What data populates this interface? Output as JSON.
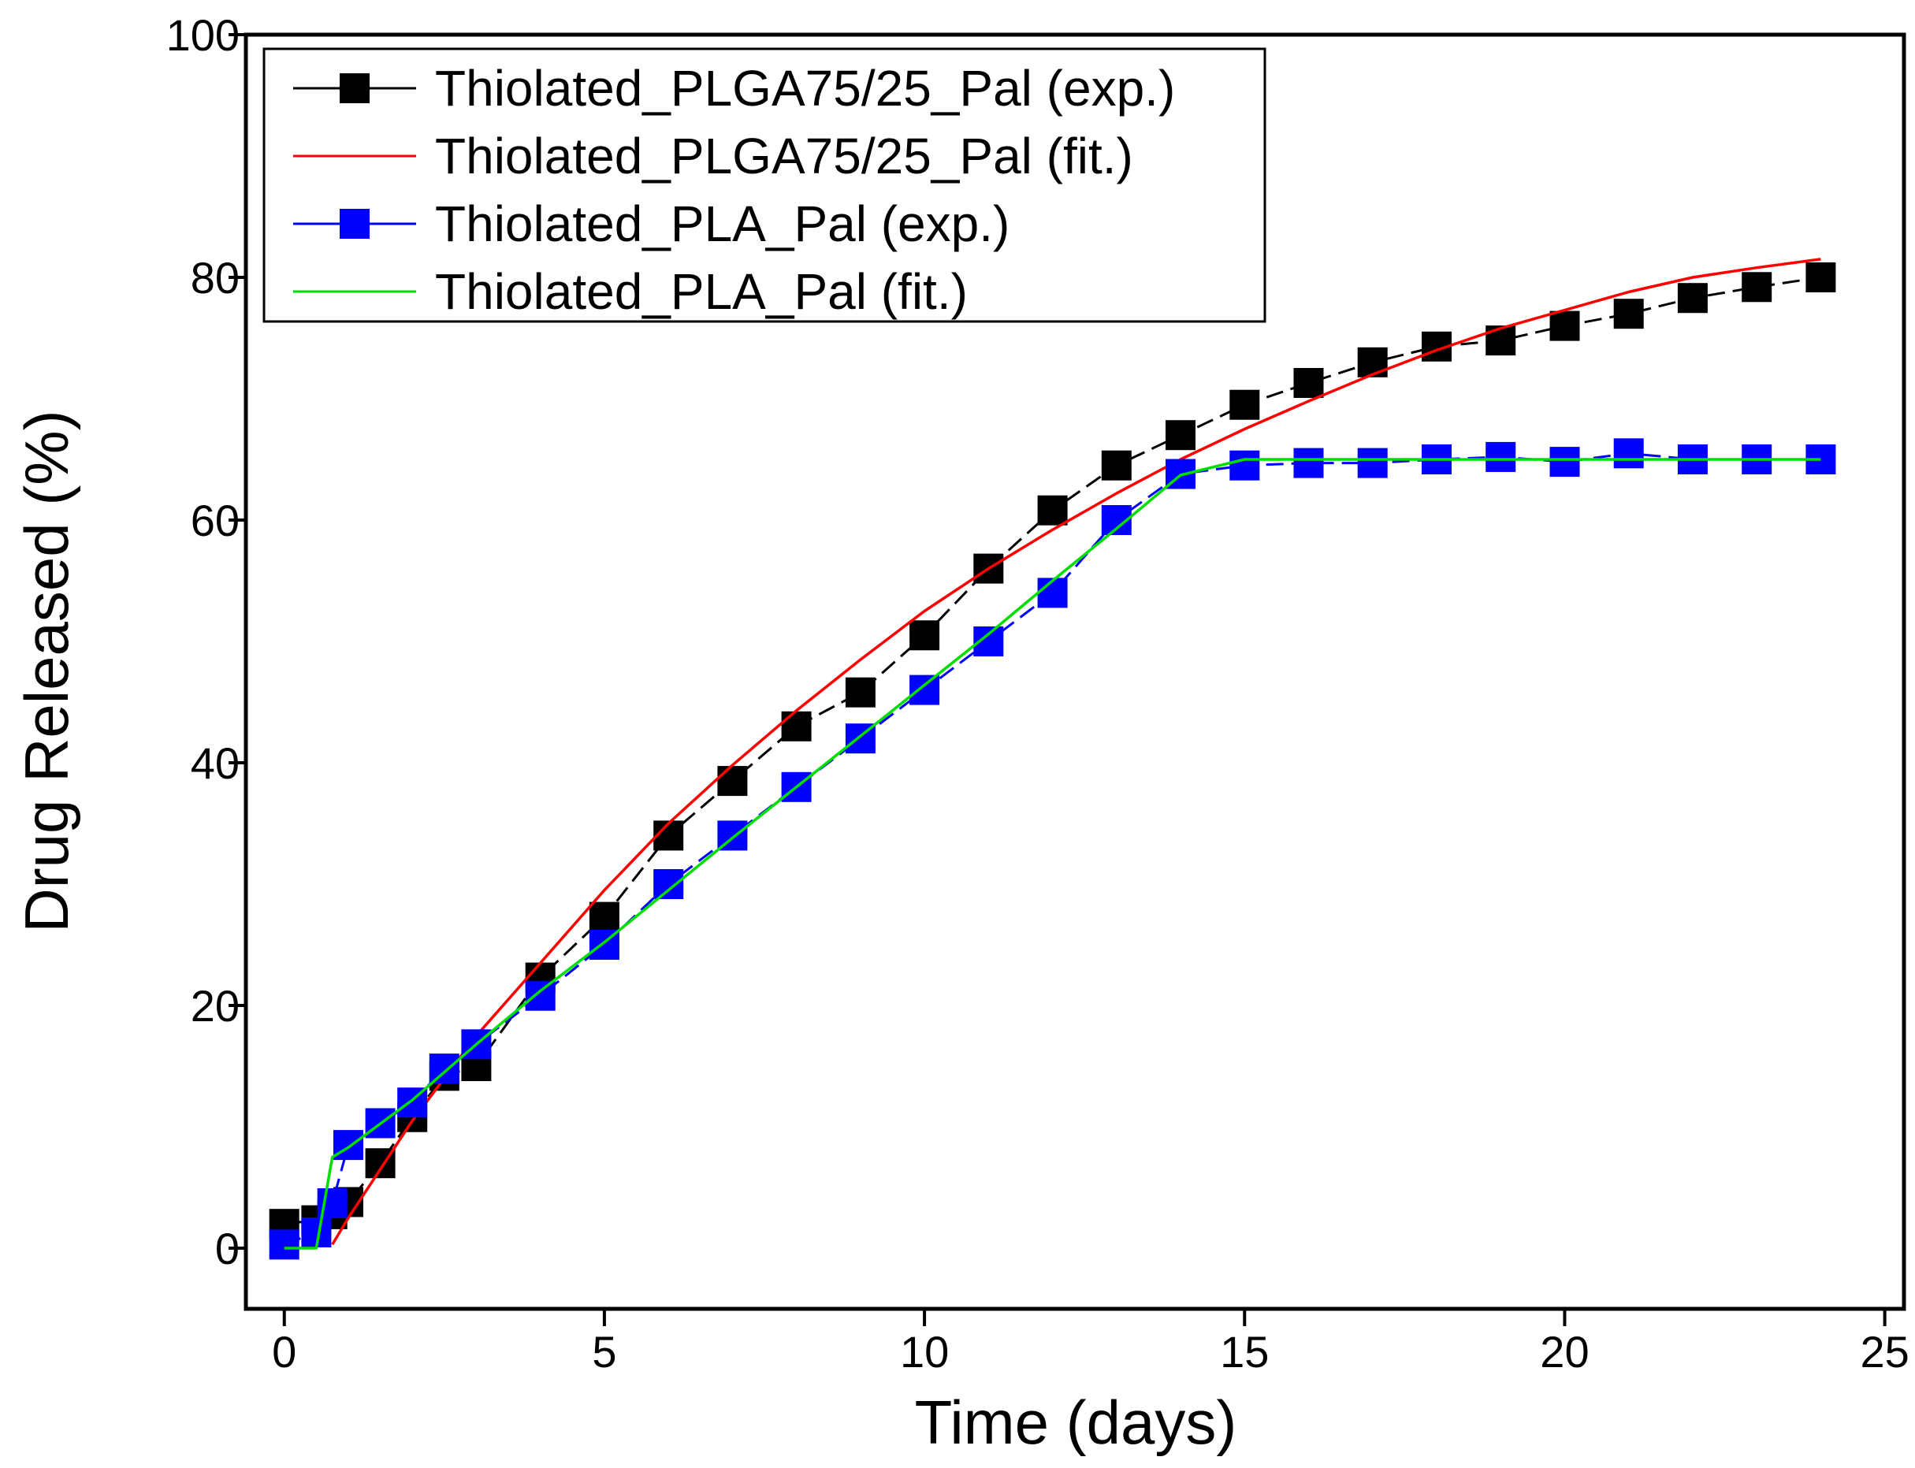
{
  "chart_data": {
    "type": "line",
    "title": "",
    "xlabel": "Time (days)",
    "ylabel": "Drug Released (%)",
    "xlim": [
      -0.6,
      25.3
    ],
    "ylim": [
      -5,
      100
    ],
    "xticks": [
      0,
      5,
      10,
      15,
      20,
      25
    ],
    "yticks": [
      0,
      20,
      40,
      60,
      80,
      100
    ],
    "grid": false,
    "legend_position": "top-left",
    "series": [
      {
        "name": "Thiolated_PLGA75/25_Pal (exp.)",
        "color": "#000000",
        "style": "dashed-line-square-marker",
        "x": [
          0,
          0.5,
          0.75,
          1,
          1.5,
          2,
          2.5,
          3,
          4,
          5,
          6,
          7,
          8,
          9,
          10,
          11,
          12,
          13,
          14,
          15,
          16,
          17,
          18,
          19,
          20,
          21,
          22,
          23,
          24
        ],
        "y": [
          2,
          2.3,
          2.8,
          3.8,
          7,
          10.8,
          14.2,
          15,
          22.3,
          27.3,
          34,
          38.5,
          43,
          45.8,
          50.5,
          56,
          60.8,
          64.5,
          67,
          69.5,
          71.3,
          73,
          74.3,
          74.8,
          76,
          77,
          78.3,
          79.2,
          80
        ]
      },
      {
        "name": "Thiolated_PLGA75/25_Pal (fit.)",
        "color": "#ff0000",
        "style": "solid-line",
        "x": [
          0.75,
          1,
          2,
          3,
          4,
          5,
          6,
          7,
          8,
          9,
          10,
          11,
          12,
          13,
          14,
          15,
          16,
          17,
          18,
          19,
          20,
          21,
          22,
          23,
          24
        ],
        "y": [
          0.3,
          2.5,
          10.5,
          17.5,
          23.5,
          29.5,
          35,
          39.8,
          44.3,
          48.5,
          52.5,
          56,
          59.2,
          62.2,
          65,
          67.5,
          69.8,
          72,
          74,
          75.8,
          77.3,
          78.8,
          80,
          80.8,
          81.5
        ]
      },
      {
        "name": "Thiolated_PLA_Pal (exp.)",
        "color": "#0000ff",
        "style": "dashed-line-square-marker",
        "x": [
          0,
          0.5,
          0.75,
          1,
          1.5,
          2,
          2.5,
          3,
          4,
          5,
          6,
          7,
          8,
          9,
          10,
          11,
          12,
          13,
          14,
          15,
          16,
          17,
          18,
          19,
          20,
          21,
          22,
          23,
          24
        ],
        "y": [
          0.3,
          1.3,
          3.7,
          8.5,
          10.3,
          12,
          14.8,
          16.8,
          20.8,
          25,
          30,
          34,
          38,
          42,
          46,
          50,
          54,
          60,
          63.8,
          64.5,
          64.7,
          64.7,
          65,
          65.2,
          64.8,
          65.5,
          65,
          65,
          65
        ]
      },
      {
        "name": "Thiolated_PLA_Pal (fit.)",
        "color": "#00dd00",
        "style": "solid-line",
        "x": [
          0,
          0.5,
          0.75,
          1,
          2,
          3,
          4,
          5,
          6,
          7,
          8,
          9,
          10,
          11,
          12,
          13,
          14,
          15,
          16,
          17,
          18,
          19,
          20,
          21,
          22,
          23,
          24
        ],
        "y": [
          0,
          0,
          7.5,
          8.3,
          12.2,
          16.8,
          21.2,
          25.2,
          29.5,
          33.8,
          38,
          42.2,
          46.4,
          50.6,
          55,
          59.3,
          63.7,
          65,
          65,
          65,
          65,
          65,
          65,
          65,
          65,
          65,
          65
        ]
      }
    ]
  }
}
